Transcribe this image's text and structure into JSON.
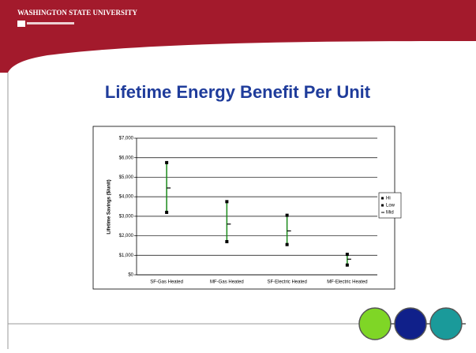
{
  "header": {
    "logo": "WASHINGTON STATE UNIVERSITY"
  },
  "chart_data": {
    "type": "range",
    "title": "Lifetime Energy Benefit Per Unit",
    "y_label": "Lifetime Savings ($/unit)",
    "categories": [
      "SF-Gas Heated",
      "MF-Gas Heated",
      "SF-Electric Heated",
      "MF-Electric Heated"
    ],
    "series": [
      {
        "name": "Hi",
        "color": "#000000",
        "values": [
          5750,
          3750,
          3050,
          1050
        ]
      },
      {
        "name": "Low",
        "color": "#000000",
        "values": [
          3200,
          1700,
          1550,
          500
        ]
      },
      {
        "name": "Mid",
        "color": "#000000",
        "values": [
          4450,
          2600,
          2250,
          800
        ]
      }
    ],
    "range_color": "#1a8a1a",
    "ylim": [
      0,
      7000
    ],
    "yticks": [
      {
        "value": 0,
        "label": "$0"
      },
      {
        "value": 1000,
        "label": "$1,000"
      },
      {
        "value": 2000,
        "label": "$2,000"
      },
      {
        "value": 3000,
        "label": "$3,000"
      },
      {
        "value": 4000,
        "label": "$4,000"
      },
      {
        "value": 5000,
        "label": "$5,000"
      },
      {
        "value": 6000,
        "label": "$6,000"
      },
      {
        "value": 7000,
        "label": "$7,000"
      }
    ],
    "grid": true,
    "legend": "right"
  }
}
